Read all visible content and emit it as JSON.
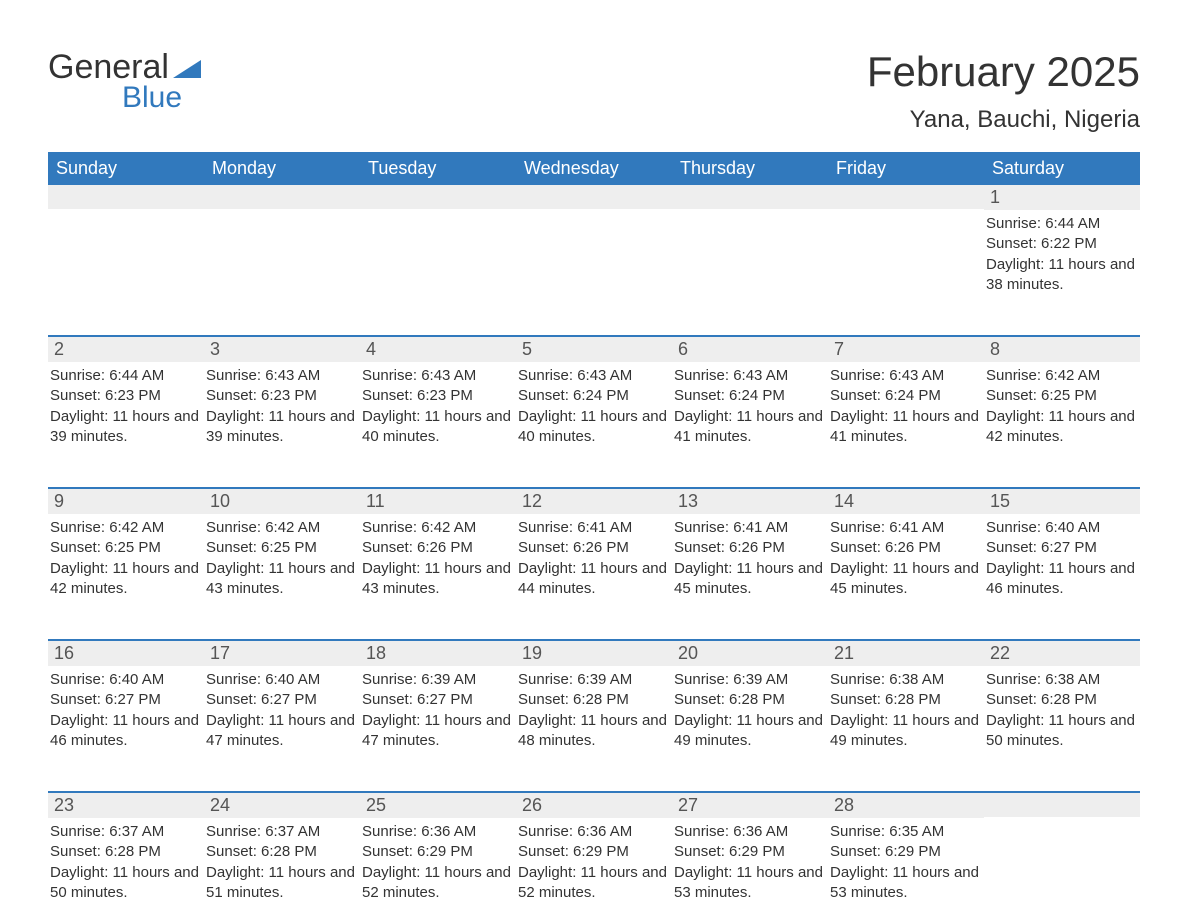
{
  "brand": {
    "word1": "General",
    "word2": "Blue",
    "accent": "#3179bd",
    "text_color": "#333333"
  },
  "header": {
    "title": "February 2025",
    "subtitle": "Yana, Bauchi, Nigeria",
    "title_fontsize": 42,
    "subtitle_fontsize": 24
  },
  "calendar": {
    "type": "table",
    "background_color": "#ffffff",
    "header_bg": "#3179bd",
    "header_text_color": "#ffffff",
    "daynum_bg": "#eeeeee",
    "border_color": "#3179bd",
    "columns": [
      "Sunday",
      "Monday",
      "Tuesday",
      "Wednesday",
      "Thursday",
      "Friday",
      "Saturday"
    ],
    "body_fontsize": 15,
    "daynum_fontsize": 18,
    "weeks": [
      [
        null,
        null,
        null,
        null,
        null,
        null,
        {
          "n": "1",
          "sunrise": "Sunrise: 6:44 AM",
          "sunset": "Sunset: 6:22 PM",
          "daylight": "Daylight: 11 hours and 38 minutes."
        }
      ],
      [
        {
          "n": "2",
          "sunrise": "Sunrise: 6:44 AM",
          "sunset": "Sunset: 6:23 PM",
          "daylight": "Daylight: 11 hours and 39 minutes."
        },
        {
          "n": "3",
          "sunrise": "Sunrise: 6:43 AM",
          "sunset": "Sunset: 6:23 PM",
          "daylight": "Daylight: 11 hours and 39 minutes."
        },
        {
          "n": "4",
          "sunrise": "Sunrise: 6:43 AM",
          "sunset": "Sunset: 6:23 PM",
          "daylight": "Daylight: 11 hours and 40 minutes."
        },
        {
          "n": "5",
          "sunrise": "Sunrise: 6:43 AM",
          "sunset": "Sunset: 6:24 PM",
          "daylight": "Daylight: 11 hours and 40 minutes."
        },
        {
          "n": "6",
          "sunrise": "Sunrise: 6:43 AM",
          "sunset": "Sunset: 6:24 PM",
          "daylight": "Daylight: 11 hours and 41 minutes."
        },
        {
          "n": "7",
          "sunrise": "Sunrise: 6:43 AM",
          "sunset": "Sunset: 6:24 PM",
          "daylight": "Daylight: 11 hours and 41 minutes."
        },
        {
          "n": "8",
          "sunrise": "Sunrise: 6:42 AM",
          "sunset": "Sunset: 6:25 PM",
          "daylight": "Daylight: 11 hours and 42 minutes."
        }
      ],
      [
        {
          "n": "9",
          "sunrise": "Sunrise: 6:42 AM",
          "sunset": "Sunset: 6:25 PM",
          "daylight": "Daylight: 11 hours and 42 minutes."
        },
        {
          "n": "10",
          "sunrise": "Sunrise: 6:42 AM",
          "sunset": "Sunset: 6:25 PM",
          "daylight": "Daylight: 11 hours and 43 minutes."
        },
        {
          "n": "11",
          "sunrise": "Sunrise: 6:42 AM",
          "sunset": "Sunset: 6:26 PM",
          "daylight": "Daylight: 11 hours and 43 minutes."
        },
        {
          "n": "12",
          "sunrise": "Sunrise: 6:41 AM",
          "sunset": "Sunset: 6:26 PM",
          "daylight": "Daylight: 11 hours and 44 minutes."
        },
        {
          "n": "13",
          "sunrise": "Sunrise: 6:41 AM",
          "sunset": "Sunset: 6:26 PM",
          "daylight": "Daylight: 11 hours and 45 minutes."
        },
        {
          "n": "14",
          "sunrise": "Sunrise: 6:41 AM",
          "sunset": "Sunset: 6:26 PM",
          "daylight": "Daylight: 11 hours and 45 minutes."
        },
        {
          "n": "15",
          "sunrise": "Sunrise: 6:40 AM",
          "sunset": "Sunset: 6:27 PM",
          "daylight": "Daylight: 11 hours and 46 minutes."
        }
      ],
      [
        {
          "n": "16",
          "sunrise": "Sunrise: 6:40 AM",
          "sunset": "Sunset: 6:27 PM",
          "daylight": "Daylight: 11 hours and 46 minutes."
        },
        {
          "n": "17",
          "sunrise": "Sunrise: 6:40 AM",
          "sunset": "Sunset: 6:27 PM",
          "daylight": "Daylight: 11 hours and 47 minutes."
        },
        {
          "n": "18",
          "sunrise": "Sunrise: 6:39 AM",
          "sunset": "Sunset: 6:27 PM",
          "daylight": "Daylight: 11 hours and 47 minutes."
        },
        {
          "n": "19",
          "sunrise": "Sunrise: 6:39 AM",
          "sunset": "Sunset: 6:28 PM",
          "daylight": "Daylight: 11 hours and 48 minutes."
        },
        {
          "n": "20",
          "sunrise": "Sunrise: 6:39 AM",
          "sunset": "Sunset: 6:28 PM",
          "daylight": "Daylight: 11 hours and 49 minutes."
        },
        {
          "n": "21",
          "sunrise": "Sunrise: 6:38 AM",
          "sunset": "Sunset: 6:28 PM",
          "daylight": "Daylight: 11 hours and 49 minutes."
        },
        {
          "n": "22",
          "sunrise": "Sunrise: 6:38 AM",
          "sunset": "Sunset: 6:28 PM",
          "daylight": "Daylight: 11 hours and 50 minutes."
        }
      ],
      [
        {
          "n": "23",
          "sunrise": "Sunrise: 6:37 AM",
          "sunset": "Sunset: 6:28 PM",
          "daylight": "Daylight: 11 hours and 50 minutes."
        },
        {
          "n": "24",
          "sunrise": "Sunrise: 6:37 AM",
          "sunset": "Sunset: 6:28 PM",
          "daylight": "Daylight: 11 hours and 51 minutes."
        },
        {
          "n": "25",
          "sunrise": "Sunrise: 6:36 AM",
          "sunset": "Sunset: 6:29 PM",
          "daylight": "Daylight: 11 hours and 52 minutes."
        },
        {
          "n": "26",
          "sunrise": "Sunrise: 6:36 AM",
          "sunset": "Sunset: 6:29 PM",
          "daylight": "Daylight: 11 hours and 52 minutes."
        },
        {
          "n": "27",
          "sunrise": "Sunrise: 6:36 AM",
          "sunset": "Sunset: 6:29 PM",
          "daylight": "Daylight: 11 hours and 53 minutes."
        },
        {
          "n": "28",
          "sunrise": "Sunrise: 6:35 AM",
          "sunset": "Sunset: 6:29 PM",
          "daylight": "Daylight: 11 hours and 53 minutes."
        },
        null
      ]
    ]
  }
}
